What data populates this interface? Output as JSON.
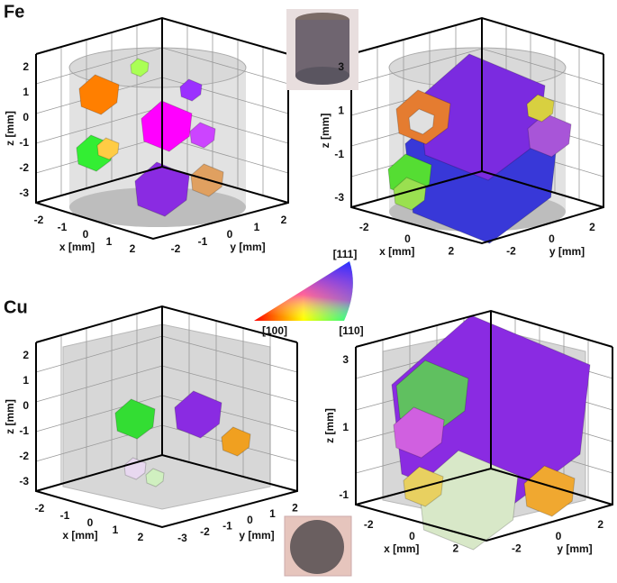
{
  "rows": [
    {
      "label": "Fe",
      "panels": [
        {
          "z_label": "z [mm]",
          "x_label": "x [mm]",
          "y_label": "y [mm]",
          "z_ticks": [
            2,
            1,
            0,
            -1,
            -2,
            -3
          ],
          "x_ticks": [
            -2,
            -1,
            0,
            1,
            2
          ],
          "y_ticks": [
            -2,
            -1,
            0,
            1,
            2
          ]
        },
        {
          "z_label": "z [mm]",
          "x_label": "x [mm]",
          "y_label": "y [mm]",
          "z_ticks": [
            3,
            1,
            -1,
            -3
          ],
          "x_ticks": [
            -2,
            0,
            2
          ],
          "y_ticks": [
            -2,
            0,
            2
          ]
        }
      ]
    },
    {
      "label": "Cu",
      "panels": [
        {
          "z_label": "z [mm]",
          "x_label": "x [mm]",
          "y_label": "y [mm]",
          "z_ticks": [
            2,
            1,
            0,
            -1,
            -2,
            -3
          ],
          "x_ticks": [
            -2,
            -1,
            0,
            1,
            2
          ],
          "y_ticks": [
            -3,
            -2,
            -1,
            0,
            1,
            2
          ]
        },
        {
          "z_label": "z [mm]",
          "x_label": "x [mm]",
          "y_label": "y [mm]",
          "z_ticks": [
            3,
            1,
            -1
          ],
          "x_ticks": [
            -2,
            0,
            2
          ],
          "y_ticks": [
            -2,
            0,
            2
          ]
        }
      ]
    }
  ],
  "color_key": {
    "top": "[111]",
    "left": "[100]",
    "right": "[110]"
  }
}
